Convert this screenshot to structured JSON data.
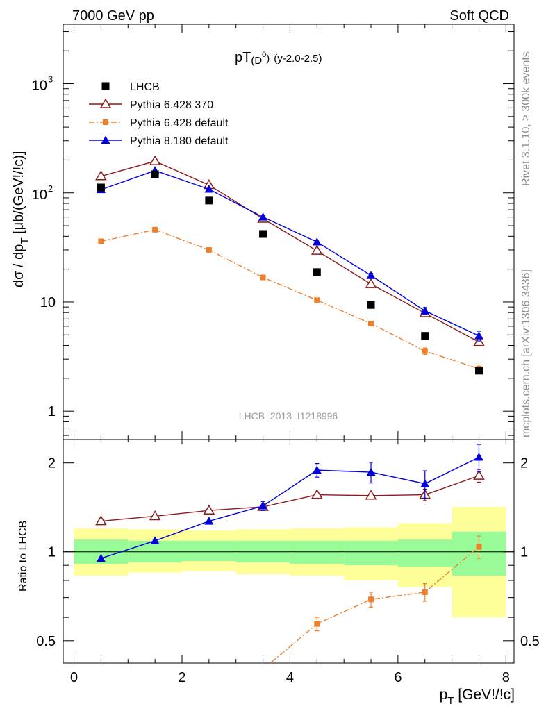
{
  "header": {
    "left": "7000 GeV pp",
    "right": "Soft QCD"
  },
  "side_text": {
    "rivet": "Rivet 3.1.10, ≥ 300k events",
    "source": "mcplots.cern.ch [arXiv:1306.3436]"
  },
  "plot_title": {
    "main": "pT",
    "paren_open": "(D",
    "sup": "0",
    "paren_close": ")",
    "rapidity": "(y-2.0-2.5)"
  },
  "ylabel_main": {
    "part1": "dσ / dp",
    "sub": "T",
    "part2": " [μb/(GeV!/!c)]"
  },
  "xlabel": {
    "p": "p",
    "sub": "T",
    "unit": " [GeV!/!c]"
  },
  "ylabel_ratio": "Ratio to LHCB",
  "watermark": "LHCB_2013_I1218996",
  "legend": [
    {
      "label": "LHCB",
      "color": "#000000",
      "marker": "square-filled",
      "line": "none"
    },
    {
      "label": "Pythia 6.428 370",
      "color": "#8b1a1a",
      "marker": "triangle-open",
      "line": "solid"
    },
    {
      "label": "Pythia 6.428 default",
      "color": "#f07f2a",
      "marker": "square-small",
      "line": "dashdot"
    },
    {
      "label": "Pythia 8.180 default",
      "color": "#0000dd",
      "marker": "triangle-filled",
      "line": "solid"
    }
  ],
  "ticks": {
    "main_y": [
      {
        "v": 1,
        "t": "1"
      },
      {
        "v": 10,
        "t": "10"
      },
      {
        "v": 100,
        "t": "10",
        "sup": "2"
      },
      {
        "v": 1000,
        "t": "10",
        "sup": "3"
      }
    ],
    "ratio_y": [
      {
        "v": 0.5,
        "t": "0.5"
      },
      {
        "v": 1,
        "t": "1"
      },
      {
        "v": 2,
        "t": "2"
      }
    ],
    "x": [
      {
        "v": 0,
        "t": "0"
      },
      {
        "v": 2,
        "t": "2"
      },
      {
        "v": 4,
        "t": "4"
      },
      {
        "v": 6,
        "t": "6"
      },
      {
        "v": 8,
        "t": "8"
      }
    ]
  },
  "chart_data": {
    "type": "scatter",
    "x_range": [
      -0.2,
      8.15
    ],
    "y_range_main": [
      0.55,
      3500
    ],
    "y_scale_main": "log",
    "y_range_ratio": [
      0.42,
      2.4
    ],
    "y_scale_ratio": "log",
    "legend_position": "top-left",
    "bins": [
      [
        0,
        1
      ],
      [
        1,
        2
      ],
      [
        2,
        3
      ],
      [
        3,
        4
      ],
      [
        4,
        5
      ],
      [
        5,
        6
      ],
      [
        6,
        7
      ],
      [
        7,
        8
      ]
    ],
    "x": [
      0.5,
      1.5,
      2.5,
      3.5,
      4.5,
      5.5,
      6.5,
      7.5
    ],
    "series": [
      {
        "name": "LHCB",
        "values": [
          112,
          148,
          85,
          42,
          18.8,
          9.4,
          4.9,
          2.35
        ],
        "errors": [
          0,
          0,
          0,
          0,
          0,
          0,
          0,
          0.12
        ]
      },
      {
        "name": "Pythia 6.428 370",
        "values": [
          142,
          195,
          118,
          58,
          29.5,
          14.6,
          7.9,
          4.3
        ],
        "errors": [
          0,
          0,
          0,
          0,
          0,
          0.4,
          0.5,
          0.3
        ]
      },
      {
        "name": "Pythia 6.428 default",
        "values": [
          36,
          46,
          30,
          16.8,
          10.4,
          6.35,
          3.55,
          2.45
        ],
        "errors": [
          0,
          0,
          0,
          0.3,
          0.2,
          0.2,
          0.25,
          0.2
        ]
      },
      {
        "name": "Pythia 8.180 default",
        "values": [
          107,
          160,
          108,
          60,
          35.5,
          17.5,
          8.3,
          4.9
        ],
        "errors": [
          0,
          0,
          0,
          0,
          0.5,
          0.8,
          0.6,
          0.5
        ]
      }
    ],
    "ratio": {
      "band_inner": [
        [
          0.91,
          1.1
        ],
        [
          0.92,
          1.09
        ],
        [
          0.93,
          1.09
        ],
        [
          0.92,
          1.09
        ],
        [
          0.91,
          1.09
        ],
        [
          0.9,
          1.09
        ],
        [
          0.89,
          1.1
        ],
        [
          0.83,
          1.17
        ]
      ],
      "band_outer": [
        [
          0.83,
          1.2
        ],
        [
          0.85,
          1.19
        ],
        [
          0.86,
          1.18
        ],
        [
          0.84,
          1.19
        ],
        [
          0.83,
          1.2
        ],
        [
          0.8,
          1.21
        ],
        [
          0.76,
          1.25
        ],
        [
          0.6,
          1.42
        ]
      ],
      "series": [
        {
          "name": "Pythia 6.428 370",
          "values": [
            1.27,
            1.32,
            1.38,
            1.42,
            1.56,
            1.55,
            1.56,
            1.81
          ],
          "errors": [
            0,
            0,
            0,
            0,
            0,
            0,
            0.07,
            0.09
          ]
        },
        {
          "name": "Pythia 6.428 default",
          "values": [
            null,
            null,
            null,
            0.4,
            0.57,
            0.69,
            0.73,
            1.04
          ],
          "errors": [
            0,
            0,
            0,
            0,
            0.03,
            0.04,
            0.05,
            0.09
          ]
        },
        {
          "name": "Pythia 8.180 default",
          "values": [
            0.95,
            1.09,
            1.27,
            1.43,
            1.89,
            1.86,
            1.7,
            2.09
          ],
          "errors": [
            0,
            0,
            0,
            0.05,
            0.1,
            0.15,
            0.18,
            0.22
          ]
        }
      ]
    }
  }
}
